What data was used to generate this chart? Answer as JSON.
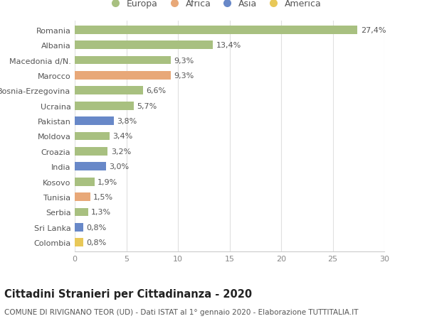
{
  "countries": [
    "Romania",
    "Albania",
    "Macedonia d/N.",
    "Marocco",
    "Bosnia-Erzegovina",
    "Ucraina",
    "Pakistan",
    "Moldova",
    "Croazia",
    "India",
    "Kosovo",
    "Tunisia",
    "Serbia",
    "Sri Lanka",
    "Colombia"
  ],
  "values": [
    27.4,
    13.4,
    9.3,
    9.3,
    6.6,
    5.7,
    3.8,
    3.4,
    3.2,
    3.0,
    1.9,
    1.5,
    1.3,
    0.8,
    0.8
  ],
  "labels": [
    "27,4%",
    "13,4%",
    "9,3%",
    "9,3%",
    "6,6%",
    "5,7%",
    "3,8%",
    "3,4%",
    "3,2%",
    "3,0%",
    "1,9%",
    "1,5%",
    "1,3%",
    "0,8%",
    "0,8%"
  ],
  "continents": [
    "Europa",
    "Europa",
    "Europa",
    "Africa",
    "Europa",
    "Europa",
    "Asia",
    "Europa",
    "Europa",
    "Asia",
    "Europa",
    "Africa",
    "Europa",
    "Asia",
    "America"
  ],
  "colors": {
    "Europa": "#a8c080",
    "Africa": "#e8a878",
    "Asia": "#6888c8",
    "America": "#e8c858"
  },
  "title": "Cittadini Stranieri per Cittadinanza - 2020",
  "subtitle": "COMUNE DI RIVIGNANO TEOR (UD) - Dati ISTAT al 1° gennaio 2020 - Elaborazione TUTTITALIA.IT",
  "xlim": [
    0,
    30
  ],
  "xticks": [
    0,
    5,
    10,
    15,
    20,
    25,
    30
  ],
  "background_color": "#ffffff",
  "grid_color": "#e0e0e0",
  "bar_height": 0.55,
  "label_fontsize": 8,
  "tick_fontsize": 8,
  "title_fontsize": 10.5,
  "subtitle_fontsize": 7.5,
  "legend_order": [
    "Europa",
    "Africa",
    "Asia",
    "America"
  ]
}
